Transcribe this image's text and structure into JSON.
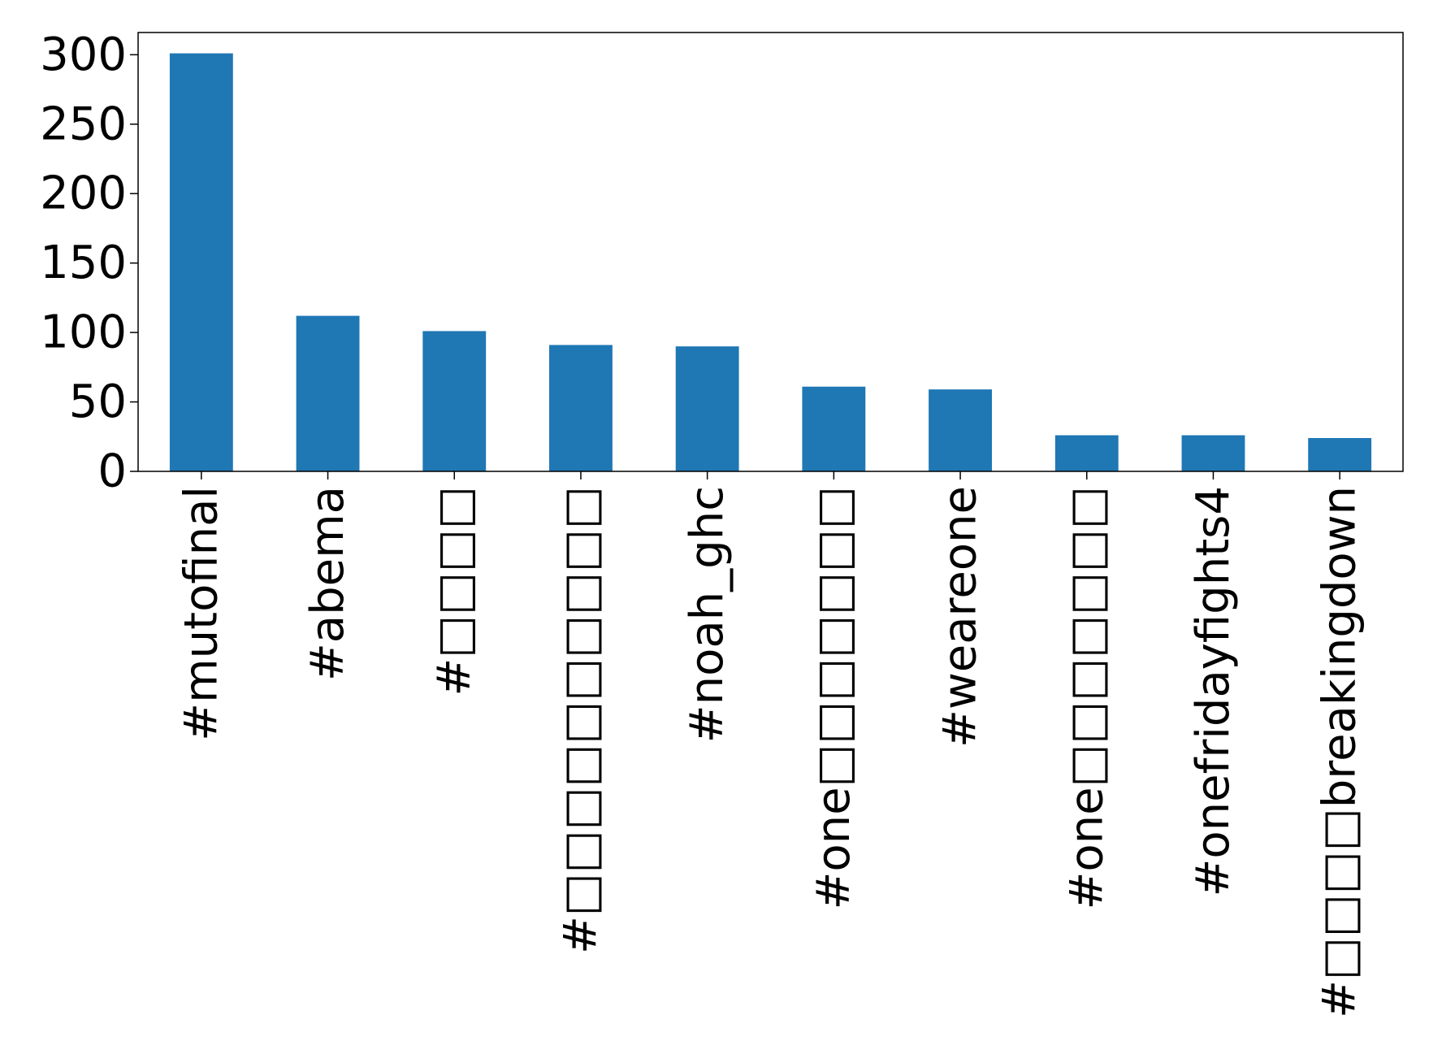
{
  "chart_data": {
    "type": "bar",
    "title": "",
    "xlabel": "",
    "ylabel": "",
    "categories": [
      "#mutofinal",
      "#abema",
      "#□□□□",
      "#□□□□□□□□□□",
      "#noah_ghc",
      "#one□□□□□□□",
      "#weareone",
      "#one□□□□□□□",
      "#onefridayfights4",
      "#□□□□breakingdown"
    ],
    "values": [
      301,
      112,
      101,
      91,
      90,
      61,
      59,
      26,
      26,
      24
    ],
    "yticks": [
      0,
      50,
      100,
      150,
      200,
      250,
      300
    ],
    "ylim": [
      0,
      316
    ],
    "grid": false,
    "legend": "none",
    "bar_color": "#1f77b4"
  }
}
